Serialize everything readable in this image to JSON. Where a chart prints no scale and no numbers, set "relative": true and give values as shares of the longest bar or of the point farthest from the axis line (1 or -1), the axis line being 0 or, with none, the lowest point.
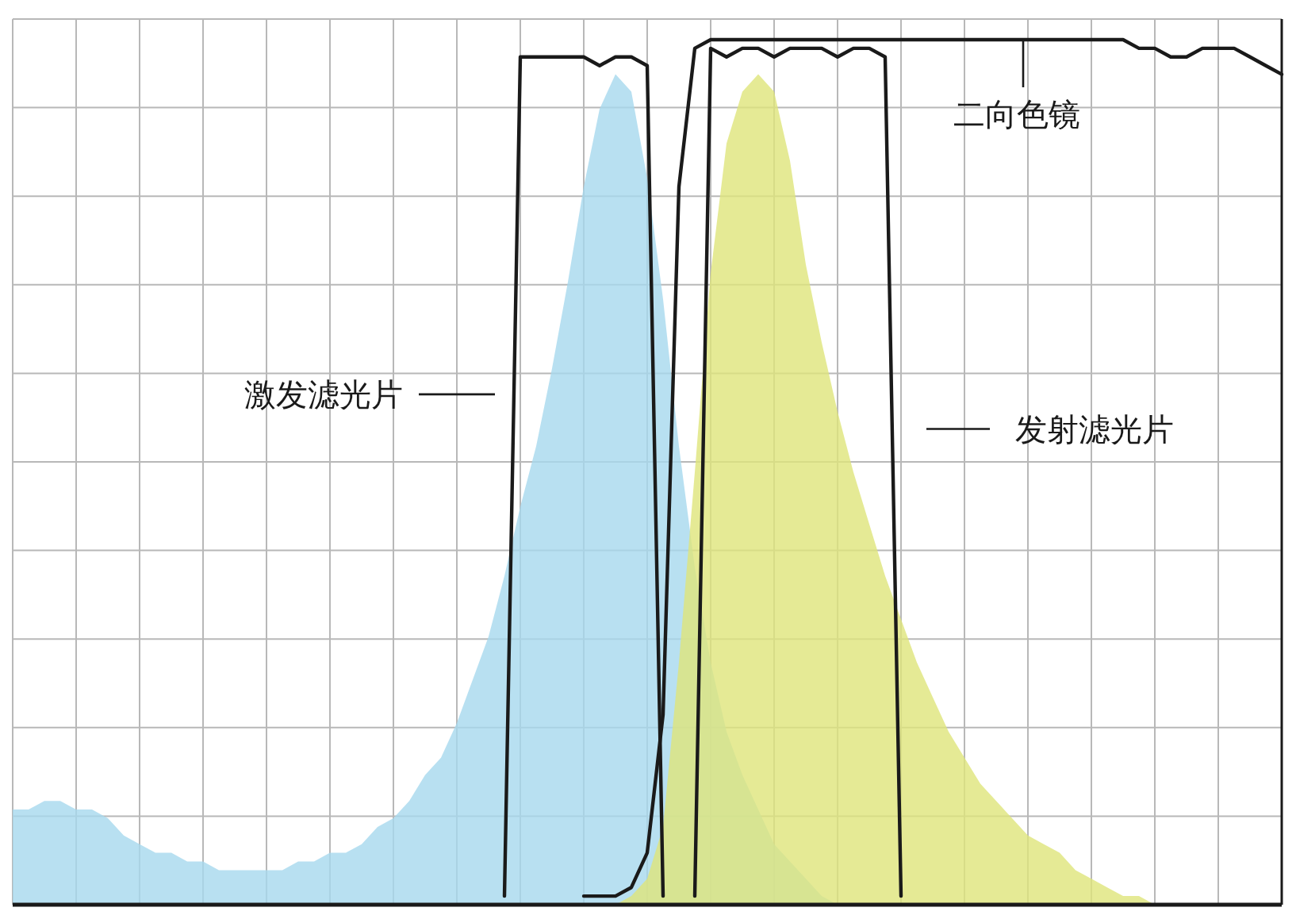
{
  "chart_data": {
    "type": "area",
    "relative": true,
    "grid": true,
    "categories": [
      null,
      null,
      null,
      null,
      null,
      null,
      null,
      null,
      null,
      null,
      null,
      null,
      null,
      null,
      null,
      null,
      null,
      null,
      null,
      null,
      null,
      null,
      null,
      null,
      null,
      null,
      null,
      null,
      null,
      null,
      null,
      null,
      null,
      null,
      null,
      null,
      null,
      null,
      null,
      null,
      null,
      null,
      null,
      null,
      null,
      null,
      null,
      null,
      null,
      null,
      null,
      null,
      null,
      null,
      null,
      null,
      null,
      null,
      null,
      null,
      null,
      null,
      null,
      null,
      null,
      null,
      null,
      null,
      null,
      null,
      null,
      null,
      null,
      null,
      null,
      null,
      null,
      null,
      null,
      null,
      null
    ],
    "series": [
      {
        "color": "#a6d8ee",
        "values": [
          0.11,
          0.11,
          0.12,
          0.12,
          0.11,
          0.11,
          0.1,
          0.08,
          0.07,
          0.06,
          0.06,
          0.05,
          0.05,
          0.04,
          0.04,
          0.04,
          0.04,
          0.04,
          0.05,
          0.05,
          0.06,
          0.06,
          0.07,
          0.09,
          0.1,
          0.12,
          0.15,
          0.17,
          0.21,
          0.26,
          0.31,
          0.38,
          0.46,
          0.53,
          0.62,
          0.72,
          0.83,
          0.92,
          0.96,
          0.94,
          0.84,
          0.7,
          0.53,
          0.39,
          0.28,
          0.2,
          0.15,
          0.11,
          0.07,
          0.05,
          0.03,
          0.01,
          0,
          0,
          0,
          0,
          0,
          0,
          0,
          0,
          0,
          0,
          0,
          0,
          0,
          0,
          0,
          0,
          0,
          0,
          0,
          0,
          0,
          0,
          0,
          0,
          0,
          0,
          0,
          0,
          0
        ]
      },
      {
        "color": "#dfe57a",
        "values": [
          null,
          null,
          null,
          null,
          null,
          null,
          null,
          null,
          null,
          null,
          null,
          null,
          null,
          null,
          null,
          null,
          null,
          null,
          null,
          null,
          null,
          null,
          null,
          null,
          null,
          null,
          null,
          null,
          null,
          null,
          null,
          null,
          null,
          null,
          null,
          null,
          null,
          null,
          0,
          0.01,
          0.03,
          0.09,
          0.28,
          0.5,
          0.73,
          0.88,
          0.94,
          0.96,
          0.94,
          0.86,
          0.74,
          0.65,
          0.57,
          0.5,
          0.44,
          0.38,
          0.33,
          0.28,
          0.24,
          0.2,
          0.17,
          0.14,
          0.12,
          0.1,
          0.08,
          0.07,
          0.06,
          0.04,
          0.03,
          0.02,
          0.01,
          0.01,
          0,
          null,
          null,
          null,
          null,
          null,
          null,
          null,
          null
        ]
      },
      {
        "name": "激发滤光片",
        "type": "line",
        "color": "#1a1a1a",
        "values": [
          null,
          null,
          null,
          null,
          null,
          null,
          null,
          null,
          null,
          null,
          null,
          null,
          null,
          null,
          null,
          null,
          null,
          null,
          null,
          null,
          null,
          null,
          null,
          null,
          null,
          null,
          null,
          null,
          null,
          null,
          null,
          0.01,
          0.98,
          0.98,
          0.98,
          0.98,
          0.98,
          0.97,
          0.98,
          0.98,
          0.97,
          0.01,
          null,
          null,
          null,
          null,
          null,
          null,
          null,
          null,
          null,
          null,
          null,
          null,
          null,
          null,
          null,
          null,
          null,
          null,
          null,
          null,
          null,
          null,
          null,
          null,
          null,
          null,
          null,
          null,
          null,
          null,
          null,
          null,
          null,
          null,
          null,
          null,
          null,
          null,
          null
        ]
      },
      {
        "name": "二向色镜",
        "type": "line",
        "color": "#1a1a1a",
        "values": [
          null,
          null,
          null,
          null,
          null,
          null,
          null,
          null,
          null,
          null,
          null,
          null,
          null,
          null,
          null,
          null,
          null,
          null,
          null,
          null,
          null,
          null,
          null,
          null,
          null,
          null,
          null,
          null,
          null,
          null,
          null,
          null,
          null,
          null,
          null,
          null,
          0.01,
          0.01,
          0.01,
          0.02,
          0.06,
          0.22,
          0.83,
          0.99,
          1.0,
          1.0,
          1.0,
          1.0,
          1.0,
          1.0,
          1.0,
          1.0,
          1.0,
          1.0,
          1.0,
          1.0,
          1.0,
          1.0,
          1.0,
          1.0,
          1.0,
          1.0,
          1.0,
          1.0,
          1.0,
          1.0,
          1.0,
          1.0,
          1.0,
          1.0,
          1.0,
          0.99,
          0.99,
          0.98,
          0.98,
          0.99,
          0.99,
          0.99,
          0.98,
          0.97,
          0.96
        ]
      },
      {
        "name": "发射滤光片",
        "type": "line",
        "color": "#1a1a1a",
        "values": [
          null,
          null,
          null,
          null,
          null,
          null,
          null,
          null,
          null,
          null,
          null,
          null,
          null,
          null,
          null,
          null,
          null,
          null,
          null,
          null,
          null,
          null,
          null,
          null,
          null,
          null,
          null,
          null,
          null,
          null,
          null,
          null,
          null,
          null,
          null,
          null,
          null,
          null,
          null,
          null,
          null,
          null,
          null,
          0.01,
          0.99,
          0.98,
          0.99,
          0.99,
          0.98,
          0.99,
          0.99,
          0.99,
          0.98,
          0.99,
          0.99,
          0.98,
          0.01,
          null,
          null,
          null,
          null,
          null,
          null,
          null,
          null,
          null,
          null,
          null,
          null,
          null,
          null,
          null,
          null,
          null,
          null,
          null,
          null,
          null,
          null,
          null,
          null
        ]
      }
    ]
  }
}
